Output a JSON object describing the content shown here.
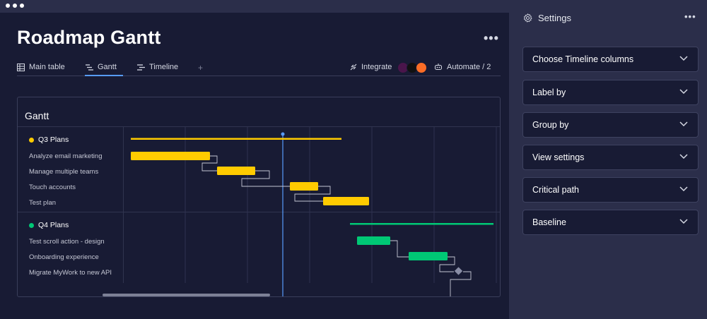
{
  "page": {
    "title": "Roadmap Gantt"
  },
  "tabs": [
    {
      "label": "Main table",
      "icon": "table-icon"
    },
    {
      "label": "Gantt",
      "icon": "gantt-icon",
      "active": true
    },
    {
      "label": "Timeline",
      "icon": "timeline-icon"
    }
  ],
  "toolbar": {
    "add_tab": "+",
    "integrate_label": "Integrate",
    "automate_label": "Automate / 2"
  },
  "gantt": {
    "header": "Gantt",
    "groups": [
      {
        "name": "Q3 Plans",
        "color": "#ffcb00",
        "items": [
          "Analyze email marketing",
          "Manage multiple teams",
          "Touch accounts",
          "Test plan"
        ]
      },
      {
        "name": "Q4 Plans",
        "color": "#00c875",
        "items": [
          "Test scroll action - design",
          "Onboarding experience",
          "Migrate MyWork to new API"
        ]
      }
    ]
  },
  "settings": {
    "title": "Settings",
    "sections": [
      "Choose Timeline columns",
      "Label by",
      "Group by",
      "View settings",
      "Critical path",
      "Baseline"
    ]
  },
  "colors": {
    "background": "#181b34",
    "panel": "#2b2e4a",
    "accent": "#579bfc",
    "q3": "#ffcb00",
    "q4": "#00c875"
  }
}
